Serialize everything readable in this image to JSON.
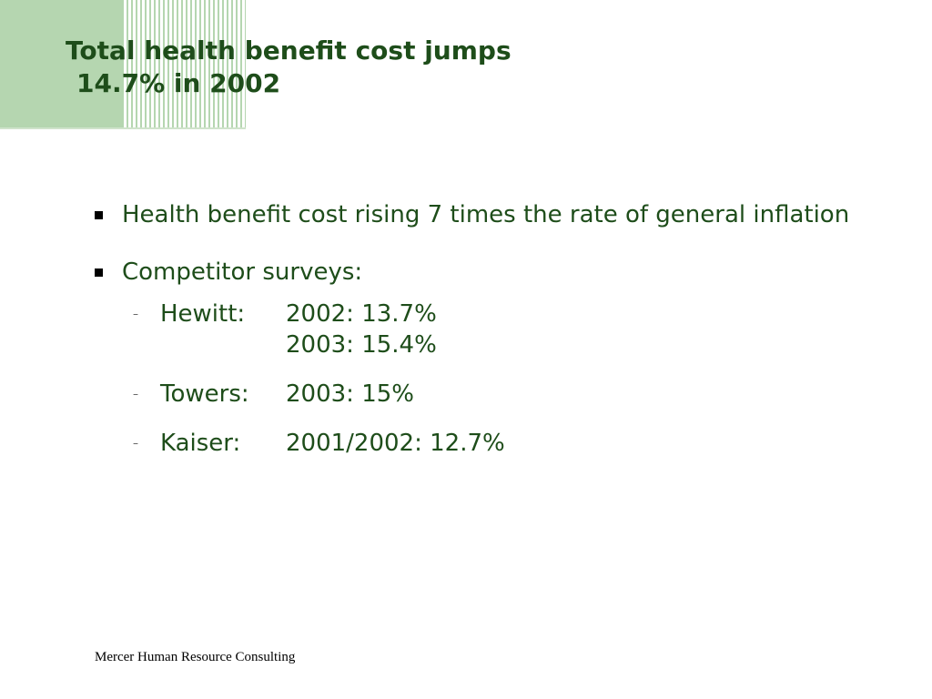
{
  "title": {
    "line1": "Total health benefit cost jumps",
    "line2": "14.7% in 2002"
  },
  "bullets": [
    {
      "text": "Health benefit cost rising 7 times the rate of general inflation"
    },
    {
      "text": "Competitor surveys:"
    }
  ],
  "surveys": [
    {
      "name": "Hewitt:",
      "values": [
        "2002:  13.7%",
        "2003:  15.4%"
      ]
    },
    {
      "name": "Towers:",
      "values": [
        "2003:  15%"
      ]
    },
    {
      "name": "Kaiser:",
      "values": [
        "2001/2002:  12.7%"
      ]
    }
  ],
  "footer": "Mercer Human Resource Consulting",
  "colors": {
    "title": "#1e4d1a",
    "text": "#1e4d1a",
    "decoration": "#b5d6b0"
  }
}
